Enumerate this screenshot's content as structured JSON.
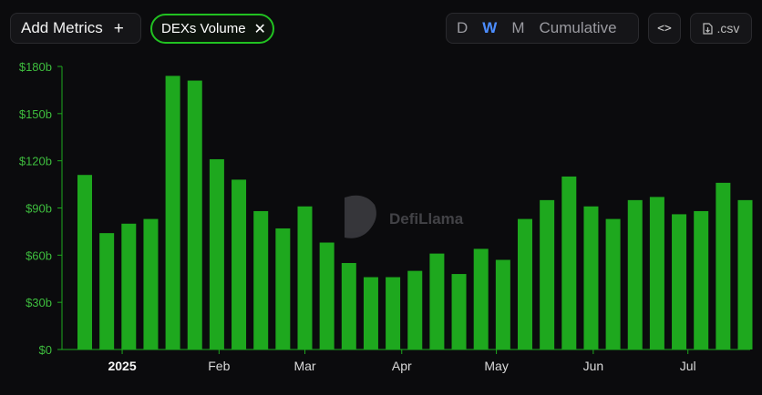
{
  "toolbar": {
    "add_metrics_label": "Add Metrics",
    "add_icon": "plus-icon",
    "metric_chip_label": "DEXs Volume",
    "remove_icon": "close-icon",
    "periods": [
      "D",
      "W",
      "M",
      "Cumulative"
    ],
    "active_period": "W",
    "embed_icon": "code-icon",
    "csv_label": ".csv",
    "csv_icon": "file-download-icon"
  },
  "watermark": {
    "text": "DefiLlama",
    "icon": "llama-logo"
  },
  "colors": {
    "bar": "#1ea81e",
    "axis": "#1ea81e",
    "accent": "#4c8dff",
    "chip_border": "#21c221",
    "background": "#0b0b0d"
  },
  "chart_data": {
    "type": "bar",
    "series": [
      {
        "values": [
          111,
          74,
          80,
          83,
          174,
          171,
          121,
          108,
          88,
          77,
          91,
          68,
          55,
          46,
          46,
          50,
          61,
          48,
          64,
          57,
          83,
          95,
          110,
          91,
          83,
          95,
          97,
          86,
          88,
          106,
          95
        ]
      }
    ],
    "yticks": [
      "$0",
      "$30b",
      "$60b",
      "$90b",
      "$120b",
      "$150b",
      "$180b"
    ],
    "ylim": [
      0,
      180
    ],
    "y_unit": "billions USD",
    "xticks": [
      {
        "label": "2025",
        "bar_index": 1.7,
        "bold": true
      },
      {
        "label": "Feb",
        "bar_index": 6.1,
        "bold": false
      },
      {
        "label": "Mar",
        "bar_index": 10.0,
        "bold": false
      },
      {
        "label": "Apr",
        "bar_index": 14.4,
        "bold": false
      },
      {
        "label": "May",
        "bar_index": 18.7,
        "bold": false
      },
      {
        "label": "Jun",
        "bar_index": 23.1,
        "bold": false
      },
      {
        "label": "Jul",
        "bar_index": 27.4,
        "bold": false
      }
    ],
    "grid": false
  }
}
